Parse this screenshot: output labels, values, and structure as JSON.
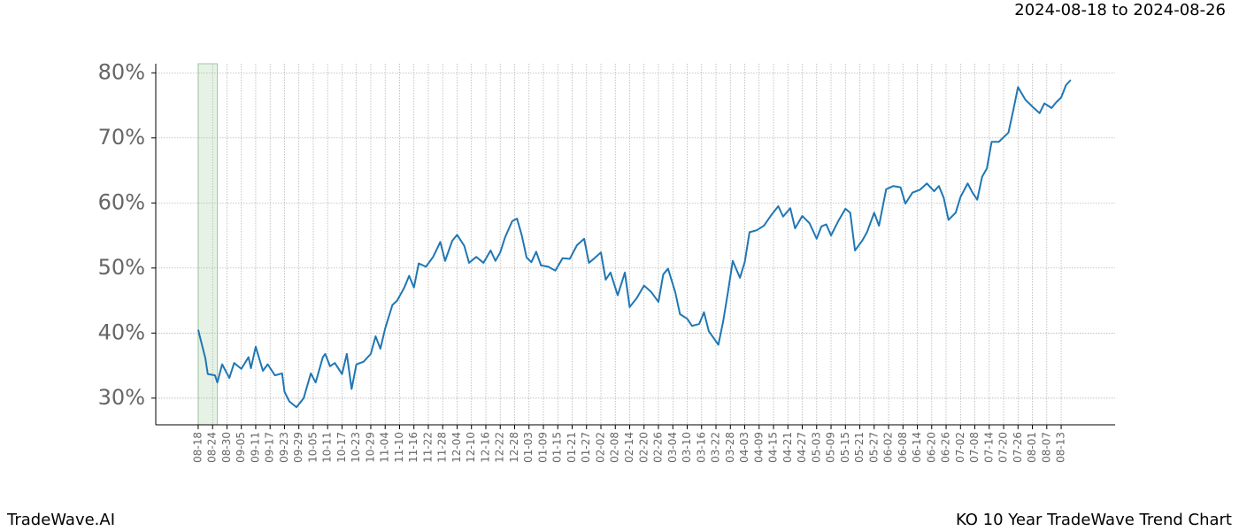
{
  "header": {
    "date_range": "2024-08-18 to 2024-08-26"
  },
  "footer": {
    "brand": "TradeWave.AI",
    "caption": "KO 10 Year TradeWave Trend Chart"
  },
  "chart_data": {
    "type": "line",
    "x": [
      0,
      3,
      4,
      7,
      8,
      10,
      13,
      15,
      18,
      21,
      22,
      24,
      27,
      29,
      32,
      35,
      36,
      38,
      41,
      44,
      47,
      49,
      52,
      53,
      55,
      57,
      60,
      62,
      64,
      66,
      69,
      72,
      74,
      76,
      78,
      81,
      83,
      86,
      88,
      90,
      92,
      95,
      98,
      101,
      103,
      106,
      108,
      111,
      113,
      116,
      119,
      122,
      124,
      126,
      128,
      131,
      133,
      135,
      137,
      139,
      141,
      143,
      146,
      149,
      152,
      155,
      158,
      161,
      163,
      165,
      168,
      170,
      172,
      175,
      178,
      180,
      183,
      186,
      189,
      192,
      194,
      196,
      199,
      201,
      204,
      206,
      209,
      211,
      213,
      217,
      219,
      221,
      223,
      226,
      228,
      230,
      233,
      236,
      239,
      242,
      244,
      247,
      249,
      252,
      255,
      258,
      260,
      262,
      264,
      267,
      270,
      272,
      274,
      277,
      279,
      282,
      284,
      287,
      290,
      293,
      295,
      298,
      301,
      304,
      307,
      309,
      311,
      313,
      316,
      318,
      321,
      323,
      325,
      327,
      329,
      331,
      334,
      336,
      338,
      340,
      342,
      345,
      348,
      351,
      353,
      356,
      358,
      360,
      362,
      364
    ],
    "series": [
      {
        "color": "#1f77b4",
        "values": [
          40.5,
          36.1,
          33.7,
          33.5,
          32.4,
          35.2,
          33.1,
          35.4,
          34.5,
          36.3,
          34.6,
          37.9,
          34.2,
          35.2,
          33.5,
          33.8,
          31,
          29.5,
          28.6,
          30,
          33.8,
          32.4,
          36.3,
          36.8,
          34.9,
          35.4,
          33.7,
          36.8,
          31.4,
          35.2,
          35.6,
          36.8,
          39.5,
          37.6,
          40.7,
          44.3,
          45,
          47,
          48.8,
          47,
          50.7,
          50.2,
          51.7,
          54,
          51.1,
          54.2,
          55.1,
          53.4,
          50.8,
          51.7,
          50.8,
          52.7,
          51.1,
          52.4,
          54.7,
          57.2,
          57.6,
          55,
          51.6,
          50.9,
          52.5,
          50.4,
          50.2,
          49.6,
          51.5,
          51.4,
          53.5,
          54.5,
          50.8,
          51.4,
          52.4,
          48.2,
          49.3,
          45.8,
          49.3,
          44,
          45.4,
          47.3,
          46.3,
          44.8,
          49,
          49.9,
          46.3,
          42.9,
          42.2,
          41.1,
          41.4,
          43.2,
          40.3,
          38.2,
          41.8,
          46.3,
          51.1,
          48.5,
          50.9,
          55.5,
          55.8,
          56.5,
          58.1,
          59.5,
          57.9,
          59.2,
          56.1,
          58,
          56.9,
          54.5,
          56.4,
          56.7,
          55,
          57.2,
          59.1,
          58.5,
          52.7,
          54.2,
          55.5,
          58.5,
          56.5,
          62.1,
          62.6,
          62.4,
          59.9,
          61.6,
          62,
          63,
          61.8,
          62.6,
          60.8,
          57.4,
          58.5,
          60.9,
          63,
          61.6,
          60.5,
          64,
          65.3,
          69.4,
          69.4,
          70.1,
          70.8,
          74.2,
          77.8,
          75.9,
          74.8,
          73.8,
          75.3,
          74.6,
          75.5,
          76.2,
          78.1,
          78.9
        ]
      }
    ],
    "xlim": [
      -17.7,
      382.5
    ],
    "xticks": [
      {
        "value": 0,
        "label": "08-18"
      },
      {
        "value": 6,
        "label": "08-24"
      },
      {
        "value": 12,
        "label": "08-30"
      },
      {
        "value": 18,
        "label": "09-05"
      },
      {
        "value": 24,
        "label": "09-11"
      },
      {
        "value": 30,
        "label": "09-17"
      },
      {
        "value": 36,
        "label": "09-23"
      },
      {
        "value": 42,
        "label": "09-29"
      },
      {
        "value": 48,
        "label": "10-05"
      },
      {
        "value": 54,
        "label": "10-11"
      },
      {
        "value": 60,
        "label": "10-17"
      },
      {
        "value": 66,
        "label": "10-23"
      },
      {
        "value": 72,
        "label": "10-29"
      },
      {
        "value": 78,
        "label": "11-04"
      },
      {
        "value": 84,
        "label": "11-10"
      },
      {
        "value": 90,
        "label": "11-16"
      },
      {
        "value": 96,
        "label": "11-22"
      },
      {
        "value": 102,
        "label": "11-28"
      },
      {
        "value": 108,
        "label": "12-04"
      },
      {
        "value": 114,
        "label": "12-10"
      },
      {
        "value": 120,
        "label": "12-16"
      },
      {
        "value": 126,
        "label": "12-22"
      },
      {
        "value": 132,
        "label": "12-28"
      },
      {
        "value": 138,
        "label": "01-03"
      },
      {
        "value": 144,
        "label": "01-09"
      },
      {
        "value": 150,
        "label": "01-15"
      },
      {
        "value": 156,
        "label": "01-21"
      },
      {
        "value": 162,
        "label": "01-27"
      },
      {
        "value": 168,
        "label": "02-02"
      },
      {
        "value": 174,
        "label": "02-08"
      },
      {
        "value": 180,
        "label": "02-14"
      },
      {
        "value": 186,
        "label": "02-20"
      },
      {
        "value": 192,
        "label": "02-26"
      },
      {
        "value": 198,
        "label": "03-04"
      },
      {
        "value": 204,
        "label": "03-10"
      },
      {
        "value": 210,
        "label": "03-16"
      },
      {
        "value": 216,
        "label": "03-22"
      },
      {
        "value": 222,
        "label": "03-28"
      },
      {
        "value": 228,
        "label": "04-03"
      },
      {
        "value": 234,
        "label": "04-09"
      },
      {
        "value": 240,
        "label": "04-15"
      },
      {
        "value": 246,
        "label": "04-21"
      },
      {
        "value": 252,
        "label": "04-27"
      },
      {
        "value": 258,
        "label": "05-03"
      },
      {
        "value": 264,
        "label": "05-09"
      },
      {
        "value": 270,
        "label": "05-15"
      },
      {
        "value": 276,
        "label": "05-21"
      },
      {
        "value": 282,
        "label": "05-27"
      },
      {
        "value": 288,
        "label": "06-02"
      },
      {
        "value": 294,
        "label": "06-08"
      },
      {
        "value": 300,
        "label": "06-14"
      },
      {
        "value": 306,
        "label": "06-20"
      },
      {
        "value": 312,
        "label": "06-26"
      },
      {
        "value": 318,
        "label": "07-02"
      },
      {
        "value": 324,
        "label": "07-08"
      },
      {
        "value": 330,
        "label": "07-14"
      },
      {
        "value": 336,
        "label": "07-20"
      },
      {
        "value": 342,
        "label": "07-26"
      },
      {
        "value": 348,
        "label": "08-01"
      },
      {
        "value": 354,
        "label": "08-07"
      },
      {
        "value": 360,
        "label": "08-13"
      }
    ],
    "ylim": [
      25.9,
      81.4
    ],
    "yticks": [
      {
        "value": 30,
        "label": "30%"
      },
      {
        "value": 40,
        "label": "40%"
      },
      {
        "value": 50,
        "label": "50%"
      },
      {
        "value": 60,
        "label": "60%"
      },
      {
        "value": 70,
        "label": "70%"
      },
      {
        "value": 80,
        "label": "80%"
      }
    ],
    "grid": true,
    "highlight_range": [
      0,
      8
    ],
    "highlight_color": "#e6f2e6"
  }
}
